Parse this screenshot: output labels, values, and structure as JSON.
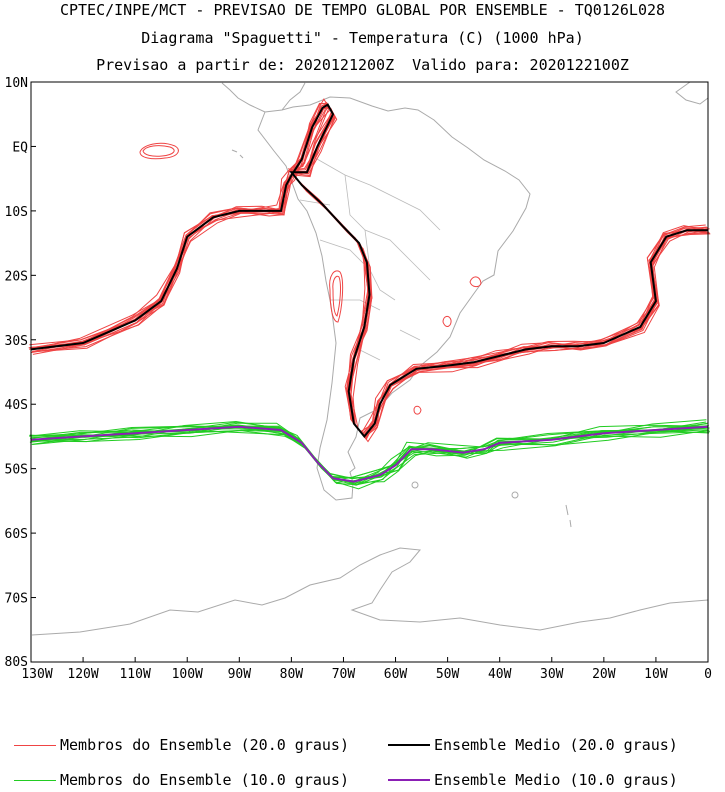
{
  "title": {
    "line1": "CPTEC/INPE/MCT - PREVISAO DE TEMPO GLOBAL POR ENSEMBLE - TQ0126L028",
    "line2": "Diagrama \"Spaguetti\" - Temperatura (C) (1000 hPa)",
    "line3": "Previsao a partir de: 2020121200Z  Valido para: 2020122100Z"
  },
  "map": {
    "lon_range": [
      -130,
      0
    ],
    "lat_range": [
      -80,
      10
    ],
    "projection": "cylindrical equidistant",
    "lon_ticks": [
      "130W",
      "120W",
      "110W",
      "100W",
      "90W",
      "80W",
      "70W",
      "60W",
      "50W",
      "40W",
      "30W",
      "20W",
      "10W",
      "0"
    ],
    "lat_ticks": [
      "10N",
      "EQ",
      "10S",
      "20S",
      "30S",
      "40S",
      "50S",
      "60S",
      "70S",
      "80S"
    ],
    "colors": {
      "coastline": "#aaaaaa",
      "member_20": "#ef4444",
      "mean_20": "#000000",
      "member_10": "#22cc22",
      "mean_10": "#8b1fb5"
    }
  },
  "legend": [
    {
      "label": "Membros do Ensemble (20.0 graus)",
      "color": "#ef4444"
    },
    {
      "label": "Ensemble Medio (20.0 graus)",
      "color": "#000000"
    },
    {
      "label": "Membros do Ensemble (10.0 graus)",
      "color": "#22cc22"
    },
    {
      "label": "Ensemble Medio (10.0 graus)",
      "color": "#8b1fb5"
    }
  ],
  "chart_data": {
    "type": "line",
    "xlabel": "",
    "ylabel": "",
    "xlim": [
      -130,
      0
    ],
    "ylim": [
      -80,
      10
    ],
    "series": [
      {
        "name": "Ensemble Medio (20.0 graus)",
        "points": [
          [
            -130,
            -31.5
          ],
          [
            -120,
            -30.5
          ],
          [
            -110,
            -27
          ],
          [
            -105,
            -24
          ],
          [
            -102,
            -19
          ],
          [
            -100,
            -14
          ],
          [
            -95,
            -11
          ],
          [
            -90,
            -10
          ],
          [
            -85,
            -10
          ],
          [
            -82,
            -10
          ],
          [
            -81,
            -6
          ],
          [
            -80,
            -4.5
          ],
          [
            -78,
            -2
          ],
          [
            -76,
            3
          ],
          [
            -74,
            6
          ],
          [
            -73,
            6.5
          ],
          [
            -72,
            5
          ],
          [
            -75,
            0
          ],
          [
            -77,
            -4
          ],
          [
            -80,
            -4
          ],
          [
            -78,
            -6
          ],
          [
            -74,
            -9
          ],
          [
            -70,
            -12.5
          ],
          [
            -67,
            -15
          ],
          [
            -65.5,
            -18
          ],
          [
            -65,
            -23
          ],
          [
            -66,
            -28
          ],
          [
            -68,
            -33
          ],
          [
            -69,
            -38
          ],
          [
            -68,
            -43
          ],
          [
            -66,
            -45
          ],
          [
            -64,
            -43
          ],
          [
            -63,
            -40
          ],
          [
            -61,
            -37
          ],
          [
            -56,
            -34.5
          ],
          [
            -50,
            -34
          ],
          [
            -45,
            -33.5
          ],
          [
            -40,
            -32.5
          ],
          [
            -35,
            -31.5
          ],
          [
            -30,
            -31
          ],
          [
            -25,
            -31
          ],
          [
            -20,
            -30.5
          ],
          [
            -13,
            -28
          ],
          [
            -10,
            -24
          ],
          [
            -11,
            -18
          ],
          [
            -8,
            -14
          ],
          [
            -4,
            -13
          ],
          [
            0,
            -13
          ]
        ]
      },
      {
        "name": "Ensemble Medio (10.0 graus)",
        "points": [
          [
            -130,
            -45.5
          ],
          [
            -120,
            -45
          ],
          [
            -110,
            -44.5
          ],
          [
            -100,
            -44
          ],
          [
            -90,
            -43.5
          ],
          [
            -82,
            -44
          ],
          [
            -78,
            -46
          ],
          [
            -75,
            -49
          ],
          [
            -72,
            -51.5
          ],
          [
            -68,
            -52
          ],
          [
            -63,
            -51
          ],
          [
            -60,
            -49.5
          ],
          [
            -57,
            -47
          ],
          [
            -53,
            -47
          ],
          [
            -47,
            -47.5
          ],
          [
            -43,
            -47
          ],
          [
            -40,
            -46
          ],
          [
            -30,
            -45.5
          ],
          [
            -20,
            -44.5
          ],
          [
            -10,
            -44
          ],
          [
            0,
            -43.5
          ]
        ]
      }
    ]
  }
}
